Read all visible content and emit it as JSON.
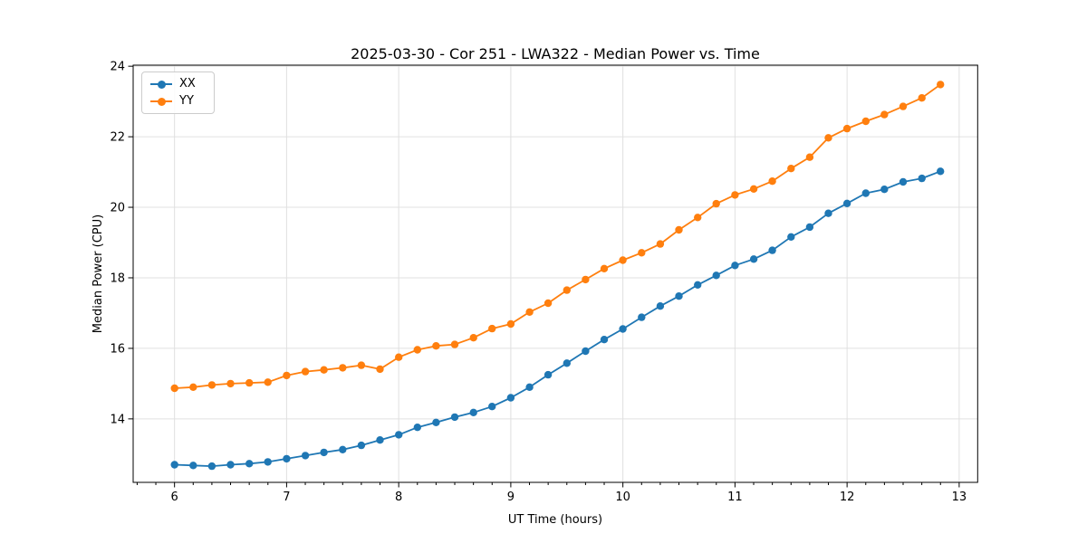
{
  "title": "2025-03-30 - Cor 251 - LWA322 - Median Power vs. Time",
  "chart_data": {
    "type": "line",
    "title": "2025-03-30 - Cor 251 - LWA322 - Median Power vs. Time",
    "xlabel": "UT Time (hours)",
    "ylabel": "Median Power (CPU)",
    "xlim": [
      5.631,
      13.165
    ],
    "ylim": [
      12.2,
      24.03
    ],
    "xticks": [
      6,
      7,
      8,
      9,
      10,
      11,
      12,
      13
    ],
    "yticks": [
      14,
      16,
      18,
      20,
      22,
      24
    ],
    "x_minor_divisions": 6,
    "grid": true,
    "grid_color": "#e0e0e0",
    "legend_position": "upper-left",
    "x": [
      6.0,
      6.167,
      6.333,
      6.5,
      6.667,
      6.833,
      7.0,
      7.167,
      7.333,
      7.5,
      7.667,
      7.833,
      8.0,
      8.167,
      8.333,
      8.5,
      8.667,
      8.833,
      9.0,
      9.167,
      9.333,
      9.5,
      9.667,
      9.833,
      10.0,
      10.167,
      10.333,
      10.5,
      10.667,
      10.833,
      11.0,
      11.167,
      11.333,
      11.5,
      11.667,
      11.833,
      12.0,
      12.167,
      12.333,
      12.5,
      12.667,
      12.833
    ],
    "series": [
      {
        "name": "XX",
        "color": "#1f77b4",
        "values": [
          12.7,
          12.68,
          12.66,
          12.7,
          12.73,
          12.78,
          12.87,
          12.96,
          13.05,
          13.13,
          13.25,
          13.4,
          13.55,
          13.76,
          13.9,
          14.05,
          14.18,
          14.35,
          14.6,
          14.9,
          15.25,
          15.58,
          15.92,
          16.25,
          16.55,
          16.88,
          17.2,
          17.48,
          17.8,
          18.07,
          18.35,
          18.53,
          18.78,
          19.16,
          19.44,
          19.83,
          20.11,
          20.4,
          20.51,
          20.72,
          20.82,
          21.02
        ]
      },
      {
        "name": "YY",
        "color": "#ff7f0e",
        "values": [
          14.87,
          14.9,
          14.96,
          15.0,
          15.02,
          15.04,
          15.23,
          15.34,
          15.39,
          15.45,
          15.52,
          15.41,
          15.75,
          15.96,
          16.07,
          16.11,
          16.3,
          16.56,
          16.69,
          17.03,
          17.28,
          17.65,
          17.95,
          18.26,
          18.5,
          18.71,
          18.96,
          19.36,
          19.71,
          20.1,
          20.35,
          20.52,
          20.74,
          21.1,
          21.42,
          21.97,
          22.23,
          22.44,
          22.63,
          22.86,
          23.1,
          23.48
        ]
      }
    ]
  }
}
